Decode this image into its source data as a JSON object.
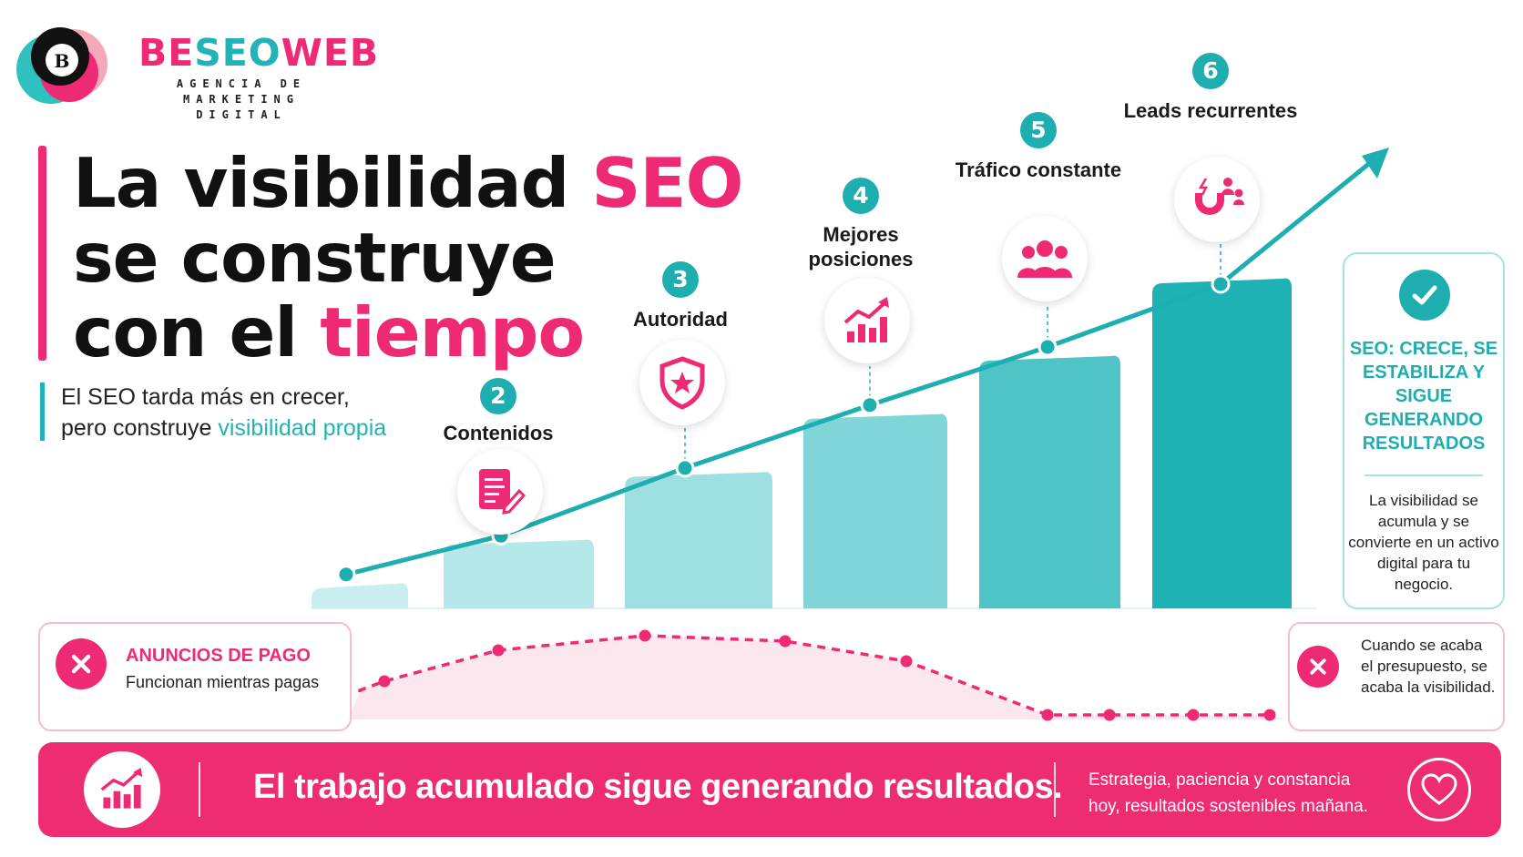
{
  "brand": {
    "name_part1": "BE",
    "name_part2": "SEO",
    "name_part3": "WEB",
    "tagline_line1": "AGENCIA DE",
    "tagline_line2": "MARKETING DIGITAL",
    "logo_letter": "B"
  },
  "headline": {
    "line1_a": "La visibilidad ",
    "line1_b": "SEO",
    "line2": "se construye",
    "line3_a": "con el ",
    "line3_b": "tiempo"
  },
  "subheadline": {
    "line1": "El SEO tarda más en crecer,",
    "line2_a": "pero construye ",
    "line2_b": "visibilidad propia"
  },
  "steps": [
    {
      "num": "2",
      "label": "Contenidos",
      "icon": "document-edit-icon"
    },
    {
      "num": "3",
      "label": "Autoridad",
      "icon": "shield-star-icon"
    },
    {
      "num": "4",
      "label": "Mejores posiciones",
      "icon": "growth-chart-icon"
    },
    {
      "num": "5",
      "label": "Tráfico constante",
      "icon": "people-group-icon"
    },
    {
      "num": "6",
      "label": "Leads recurrentes",
      "icon": "magnet-leads-icon"
    }
  ],
  "seo_card": {
    "title": "SEO: CRECE, SE ESTABILIZA Y SIGUE GENERANDO RESULTADOS",
    "text": "La visibilidad se acumula y se convierte en un activo digital para tu negocio."
  },
  "ads_card": {
    "title": "ANUNCIOS DE PAGO",
    "text": "Funcionan mientras pagas"
  },
  "ads_end_card": {
    "text": "Cuando se acaba el presupuesto, se acaba la visibilidad."
  },
  "banner": {
    "main": "El trabajo acumulado sigue generando resultados.",
    "sub_line1": "Estrategia, paciencia y constancia",
    "sub_line2": "hoy, resultados sostenibles mañana."
  },
  "colors": {
    "pink": "#ef2a74",
    "teal": "#1eaeb0",
    "bar_shades": [
      "#c9eef0",
      "#b5e8ea",
      "#9ee0e2",
      "#7fd5d8",
      "#4fc4c7",
      "#1eb2b5"
    ]
  },
  "chart_data": {
    "type": "bar",
    "categories": [
      "",
      "",
      "",
      "",
      "",
      ""
    ],
    "values": [
      4,
      13,
      27,
      39,
      51,
      67
    ],
    "ylim": [
      0,
      70
    ],
    "overlay_series": [
      {
        "type": "line",
        "values": [
          7,
          15,
          29,
          42,
          54,
          67
        ]
      },
      {
        "type": "line",
        "style": "dashed",
        "values": [
          3,
          8,
          9.5,
          8.5,
          6,
          1,
          1,
          1,
          1
        ]
      }
    ],
    "grid": false,
    "legend": "none"
  }
}
